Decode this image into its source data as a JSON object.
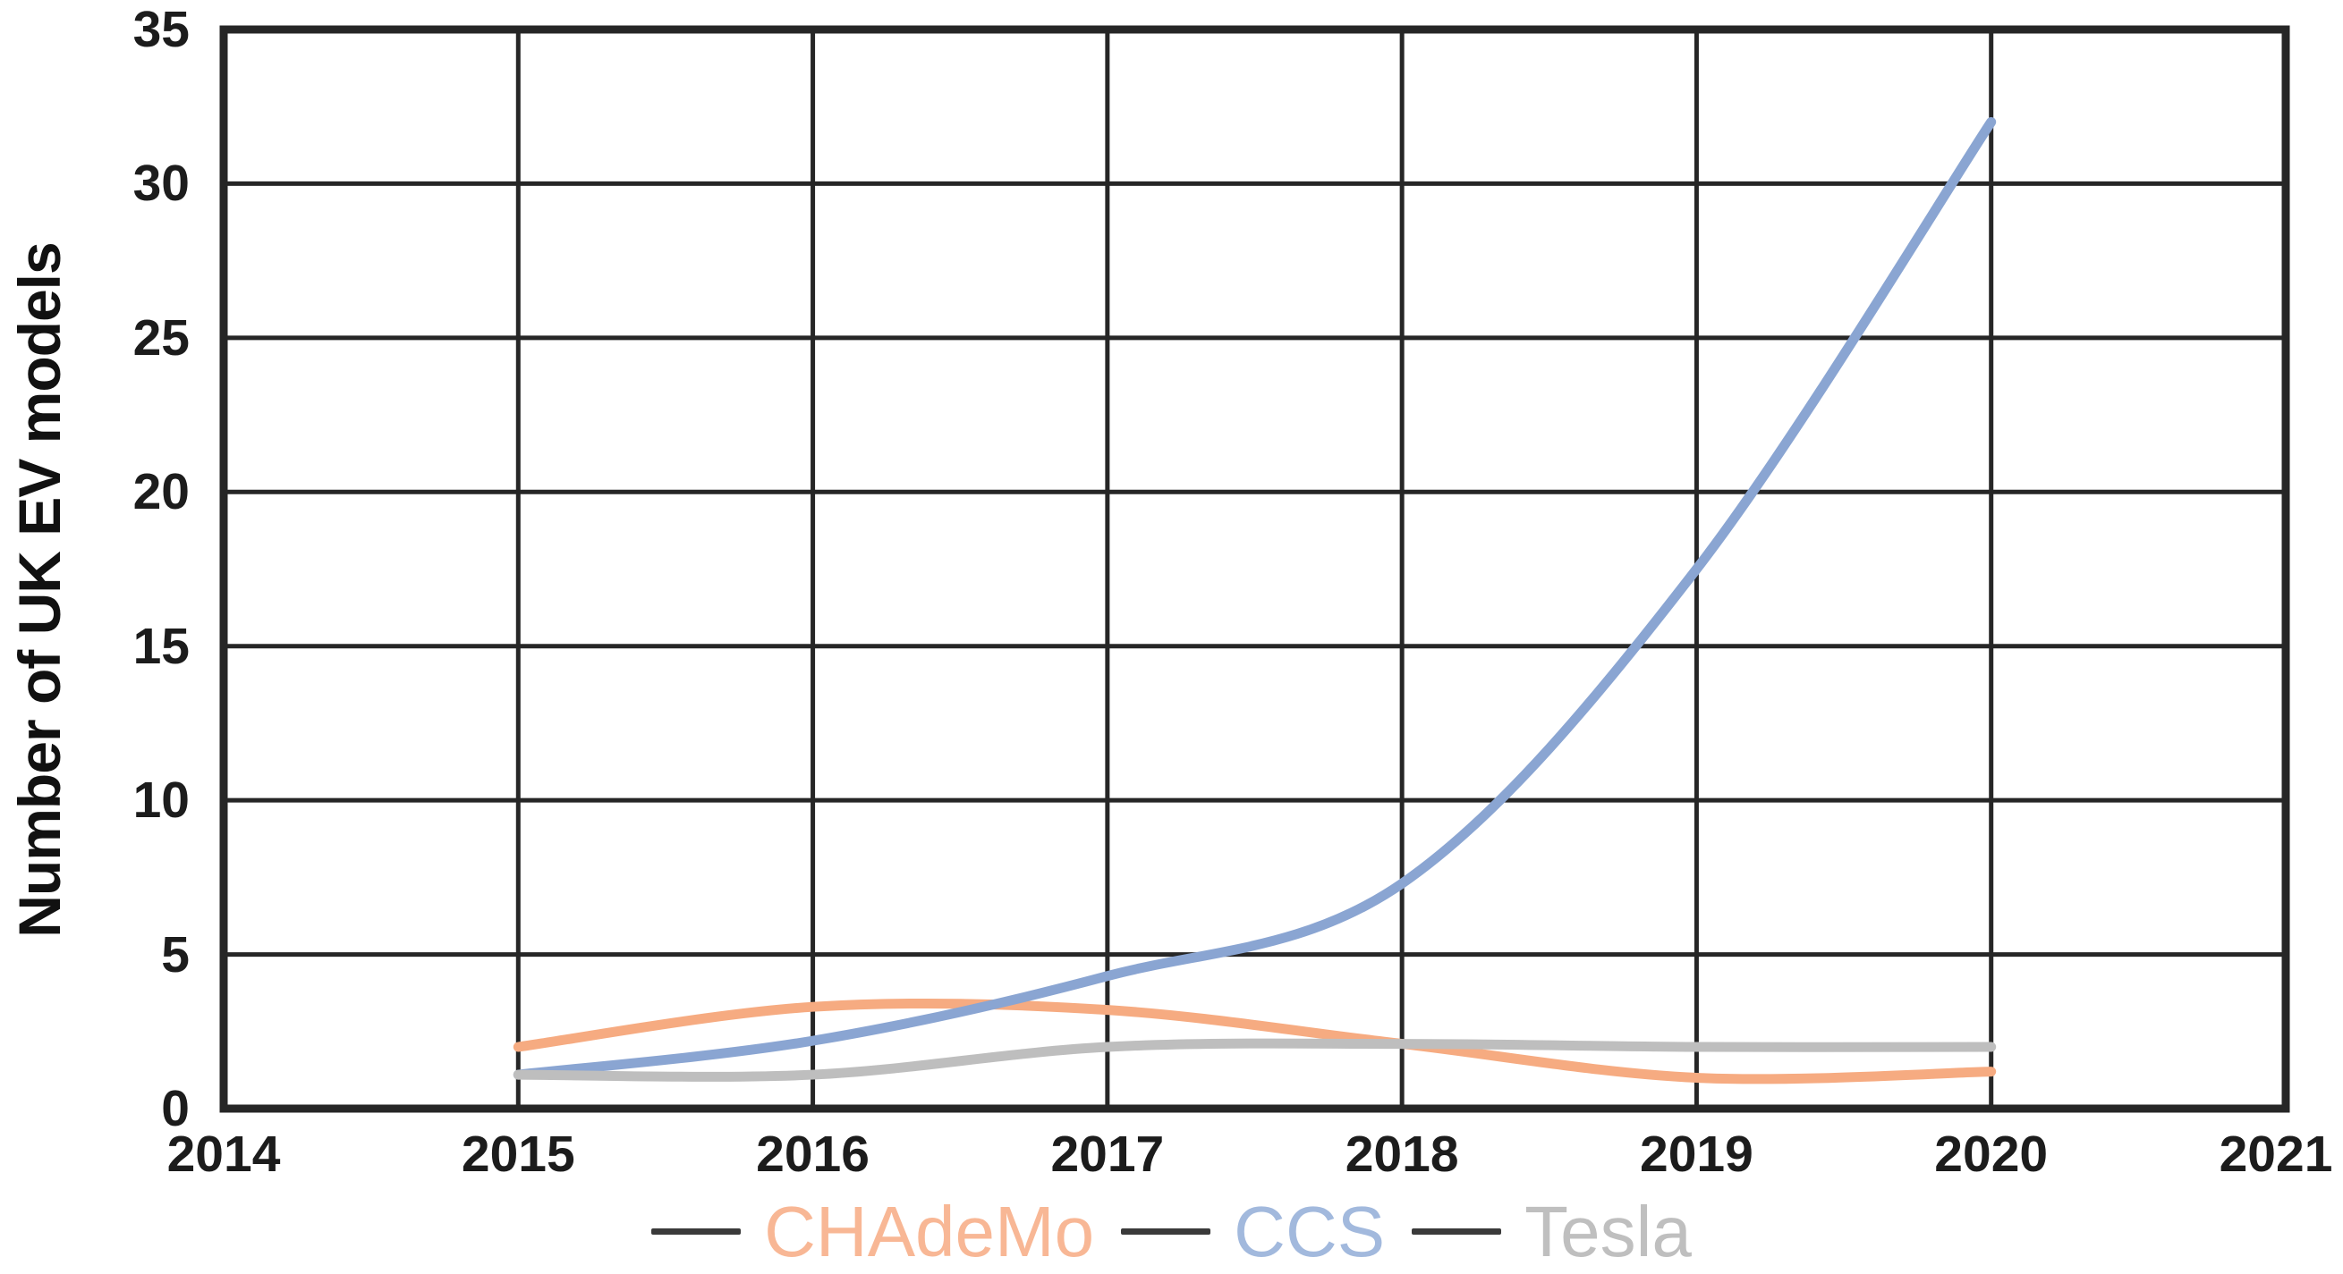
{
  "page": {
    "background": "#ffffff"
  },
  "chart_data": {
    "type": "line",
    "title": "",
    "ylabel": "Number of UK EV models",
    "xlabel": "",
    "x_tick_labels": [
      "2014",
      "2015",
      "2016",
      "2017",
      "2018",
      "2019",
      "2020",
      "2021"
    ],
    "y_tick_labels": [
      "0",
      "5",
      "10",
      "15",
      "20",
      "25",
      "30",
      "35"
    ],
    "xlim": [
      2014,
      2021
    ],
    "ylim": [
      0,
      35
    ],
    "grid": "on",
    "grid_color": "#262626",
    "axis_text_color": "#1c1c1c",
    "legend_position": "bottom-center",
    "legend_dash_color": "#3a3a3a",
    "x": [
      2015,
      2016,
      2017,
      2018,
      2019,
      2020
    ],
    "series": [
      {
        "name": "CHAdeMo",
        "line_color": "#F6AB81",
        "legend_text_color": "#F8B795",
        "values": [
          2,
          3.3,
          3.2,
          2.1,
          1,
          1.2
        ]
      },
      {
        "name": "CCS",
        "line_color": "#8AA5D2",
        "legend_text_color": "#A2B9DD",
        "values": [
          1.1,
          2.2,
          4.3,
          7.3,
          17.5,
          32
        ]
      },
      {
        "name": "Tesla",
        "line_color": "#BEBEBE",
        "legend_text_color": "#BFBFBF",
        "values": [
          1.1,
          1.1,
          2,
          2.1,
          2,
          2
        ]
      }
    ]
  }
}
